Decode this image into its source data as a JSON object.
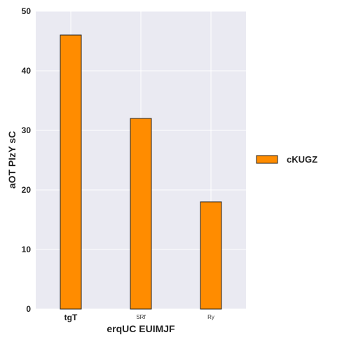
{
  "chart_data": {
    "type": "bar",
    "title": "",
    "categories": [
      "tgT",
      "SRf",
      "Ry"
    ],
    "series": [
      {
        "name": "cKUGZ",
        "values": [
          46,
          32,
          18
        ],
        "color": "#ff8c00"
      }
    ],
    "xlabel": "erqUC EUIMJF",
    "ylabel": "aOT PIzY sC",
    "ylim": [
      0,
      50
    ],
    "yticks": [
      0,
      10,
      20,
      30,
      40,
      50
    ],
    "grid": true,
    "legend_position": "right",
    "background": "#eaeaf2"
  }
}
